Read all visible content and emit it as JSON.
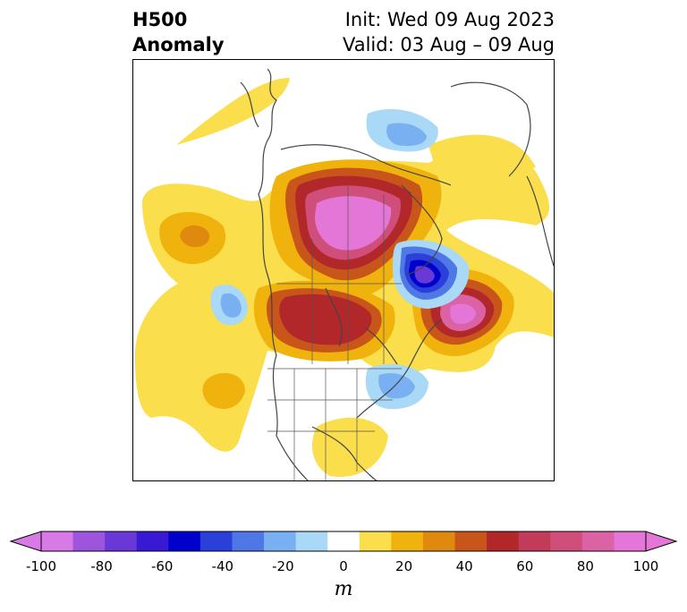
{
  "title": {
    "left_line1": "H500",
    "left_line2": "Anomaly",
    "right_line1": "Init: Wed 09 Aug 2023",
    "right_line2": "Valid: 03 Aug – 09 Aug"
  },
  "colorbar": {
    "unit_label": "m",
    "ticks": [
      "-100",
      "-80",
      "-60",
      "-40",
      "-20",
      "0",
      "20",
      "40",
      "60",
      "80",
      "100"
    ],
    "levels": [
      -100,
      -90,
      -80,
      -70,
      -60,
      -50,
      -40,
      -30,
      -20,
      -10,
      10,
      20,
      30,
      40,
      50,
      60,
      70,
      80,
      90,
      100
    ],
    "colors": [
      "#d77ae6",
      "#9e55de",
      "#6a38d6",
      "#3a19d4",
      "#0000cc",
      "#2a40d8",
      "#4f77e6",
      "#79b0f2",
      "#a9d9f7",
      "#ffffff",
      "#fbde4b",
      "#f0b20c",
      "#df8a0f",
      "#c8561a",
      "#b1272a",
      "#c23b59",
      "#cf4f7a",
      "#dc62a6",
      "#e376d6"
    ]
  },
  "map": {
    "region": "North America and Greenland",
    "anomalies": [
      {
        "name": "northern-canada-ridge",
        "sign": "positive",
        "peak_m": 90
      },
      {
        "name": "pacific-northwest-ridge",
        "sign": "positive",
        "peak_m": 70
      },
      {
        "name": "north-atlantic-ridge",
        "sign": "positive",
        "peak_m": 90
      },
      {
        "name": "labrador-trough",
        "sign": "negative",
        "peak_m": -70
      },
      {
        "name": "greenland-trough",
        "sign": "negative",
        "peak_m": -20
      },
      {
        "name": "east-coast-trough",
        "sign": "negative",
        "peak_m": -30
      },
      {
        "name": "north-pacific-trough",
        "sign": "negative",
        "peak_m": -30
      },
      {
        "name": "north-pacific-ridge",
        "sign": "positive",
        "peak_m": 40
      },
      {
        "name": "southeast-us-ridge",
        "sign": "positive",
        "peak_m": 20
      }
    ]
  }
}
